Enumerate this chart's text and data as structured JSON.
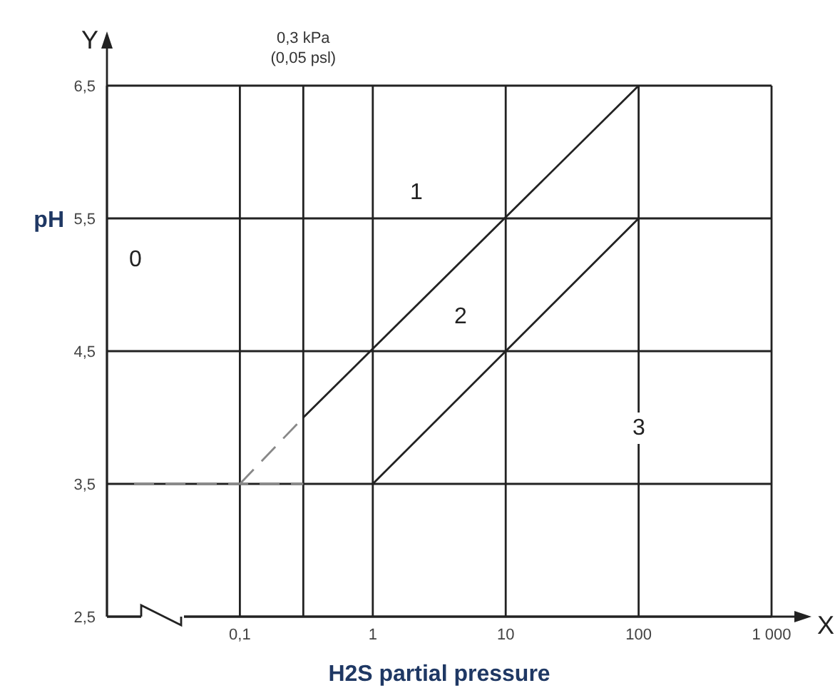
{
  "chart_data": {
    "type": "line",
    "xlabel": "H2S partial pressure",
    "ylabel": "pH",
    "log": "x",
    "grid": true,
    "marker": "none",
    "xlim": [
      0.01,
      1000
    ],
    "ylim": [
      2.5,
      6.5
    ],
    "xticks": [
      {
        "value": 0.1,
        "label": "0,1"
      },
      1,
      10,
      100,
      {
        "value": 1000,
        "label": "1 000"
      }
    ],
    "yticks": [
      {
        "value": 2.5,
        "label": "2,5"
      },
      {
        "value": 3.5,
        "label": "3,5"
      },
      {
        "value": 4.5,
        "label": "4,5"
      },
      {
        "value": 5.5,
        "label": "5,5"
      },
      {
        "value": 6.5,
        "label": "6,5"
      }
    ],
    "series": [
      {
        "color": "#888888",
        "line_style": "dashed",
        "x": [
          0.1,
          0.3
        ],
        "values": [
          3.5,
          4.0
        ]
      },
      {
        "color": "#222222",
        "line_style": "solid",
        "x": [
          0.3,
          100
        ],
        "values": [
          4.0,
          6.5
        ]
      },
      {
        "color": "#888888",
        "line_style": "dashed",
        "x": [
          0.016,
          0.3
        ],
        "values": [
          3.5,
          3.5
        ]
      },
      {
        "color": "#222222",
        "line_style": "solid",
        "x": [
          1,
          100
        ],
        "values": [
          3.5,
          5.5
        ]
      }
    ],
    "ref_lines": [
      {
        "axis": "x",
        "value": 0.3,
        "label": "0,3 kPa\n(0,05 psl)",
        "color": "#222222"
      }
    ],
    "annotations": [
      "X",
      "Y",
      "0",
      "1",
      "2",
      "3"
    ]
  }
}
